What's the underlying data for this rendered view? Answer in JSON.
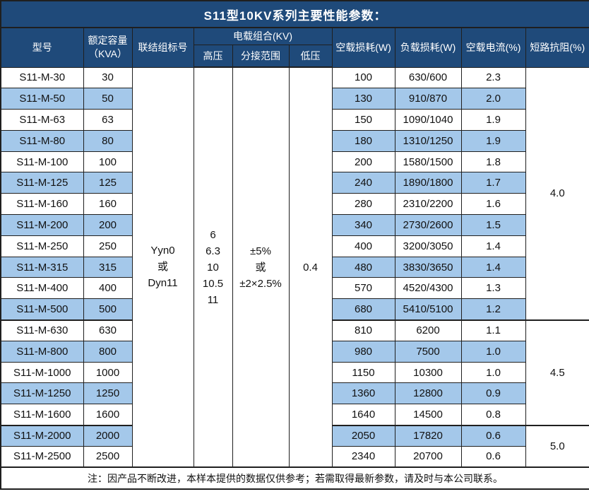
{
  "title": "S11型10KV系列主要性能参数：",
  "header": {
    "model": "型号",
    "capacity": [
      "额定容量",
      "（KVA）"
    ],
    "connection": "联结组标号",
    "voltage_group": "电载组合(KV)",
    "hv": "高压",
    "tap": "分接范围",
    "lv": "低压",
    "no_load_loss": "空载损耗(W)",
    "load_loss": "负载损耗(W)",
    "no_load_current": "空载电流(%)",
    "impedance": "短路抗阻(%)"
  },
  "merged": {
    "connection": [
      "Yyn0",
      "或",
      "Dyn11"
    ],
    "hv": [
      "6",
      "6.3",
      "10",
      "10.5",
      "11"
    ],
    "tap": [
      "±5%",
      "或",
      "±2×2.5%"
    ],
    "lv": [
      "0.4"
    ]
  },
  "impedance_groups": [
    {
      "value": "4.0",
      "span": 12
    },
    {
      "value": "4.5",
      "span": 5
    },
    {
      "value": "5.0",
      "span": 2
    }
  ],
  "rows": [
    {
      "model": "S11-M-30",
      "capacity": "30",
      "no_load_loss": "100",
      "load_loss": "630/600",
      "no_load_current": "2.3"
    },
    {
      "model": "S11-M-50",
      "capacity": "50",
      "no_load_loss": "130",
      "load_loss": "910/870",
      "no_load_current": "2.0"
    },
    {
      "model": "S11-M-63",
      "capacity": "63",
      "no_load_loss": "150",
      "load_loss": "1090/1040",
      "no_load_current": "1.9"
    },
    {
      "model": "S11-M-80",
      "capacity": "80",
      "no_load_loss": "180",
      "load_loss": "1310/1250",
      "no_load_current": "1.9"
    },
    {
      "model": "S11-M-100",
      "capacity": "100",
      "no_load_loss": "200",
      "load_loss": "1580/1500",
      "no_load_current": "1.8"
    },
    {
      "model": "S11-M-125",
      "capacity": "125",
      "no_load_loss": "240",
      "load_loss": "1890/1800",
      "no_load_current": "1.7"
    },
    {
      "model": "S11-M-160",
      "capacity": "160",
      "no_load_loss": "280",
      "load_loss": "2310/2200",
      "no_load_current": "1.6"
    },
    {
      "model": "S11-M-200",
      "capacity": "200",
      "no_load_loss": "340",
      "load_loss": "2730/2600",
      "no_load_current": "1.5"
    },
    {
      "model": "S11-M-250",
      "capacity": "250",
      "no_load_loss": "400",
      "load_loss": "3200/3050",
      "no_load_current": "1.4"
    },
    {
      "model": "S11-M-315",
      "capacity": "315",
      "no_load_loss": "480",
      "load_loss": "3830/3650",
      "no_load_current": "1.4"
    },
    {
      "model": "S11-M-400",
      "capacity": "400",
      "no_load_loss": "570",
      "load_loss": "4520/4300",
      "no_load_current": "1.3"
    },
    {
      "model": "S11-M-500",
      "capacity": "500",
      "no_load_loss": "680",
      "load_loss": "5410/5100",
      "no_load_current": "1.2"
    },
    {
      "model": "S11-M-630",
      "capacity": "630",
      "no_load_loss": "810",
      "load_loss": "6200",
      "no_load_current": "1.1"
    },
    {
      "model": "S11-M-800",
      "capacity": "800",
      "no_load_loss": "980",
      "load_loss": "7500",
      "no_load_current": "1.0"
    },
    {
      "model": "S11-M-1000",
      "capacity": "1000",
      "no_load_loss": "1150",
      "load_loss": "10300",
      "no_load_current": "1.0"
    },
    {
      "model": "S11-M-1250",
      "capacity": "1250",
      "no_load_loss": "1360",
      "load_loss": "12800",
      "no_load_current": "0.9"
    },
    {
      "model": "S11-M-1600",
      "capacity": "1600",
      "no_load_loss": "1640",
      "load_loss": "14500",
      "no_load_current": "0.8"
    },
    {
      "model": "S11-M-2000",
      "capacity": "2000",
      "no_load_loss": "2050",
      "load_loss": "17820",
      "no_load_current": "0.6"
    },
    {
      "model": "S11-M-2500",
      "capacity": "2500",
      "no_load_loss": "2340",
      "load_loss": "20700",
      "no_load_current": "0.6"
    }
  ],
  "note": "注：因产品不断改进，本样本提供的数据仅供参考；若需取得最新参数，请及时与本公司联系。",
  "colors": {
    "header_bg": "#1F4A7A",
    "header_text": "#FFFFFF",
    "band_blue": "#A4C8EA",
    "row_white": "#FFFFFF",
    "border": "#1F1F1F"
  }
}
